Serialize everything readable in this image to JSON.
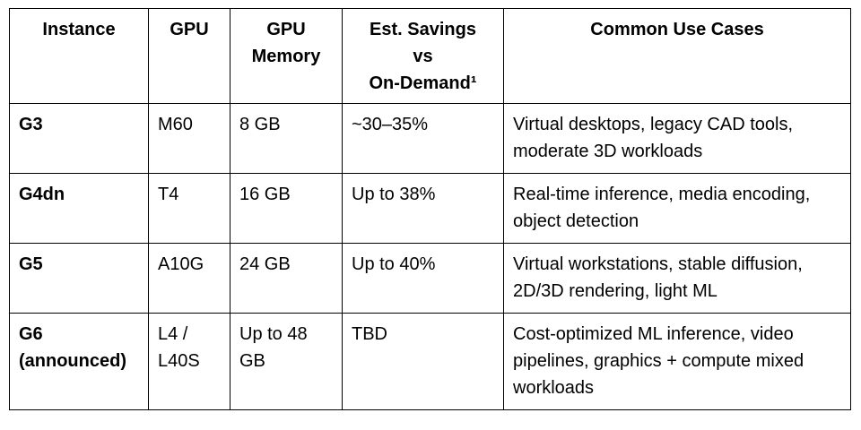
{
  "table": {
    "headers": {
      "instance": "Instance",
      "gpu": "GPU",
      "memory": [
        "GPU",
        "Memory"
      ],
      "savings": [
        "Est. Savings",
        "vs",
        "On-Demand¹"
      ],
      "use_cases": "Common Use Cases"
    },
    "rows": [
      {
        "instance": [
          "G3"
        ],
        "gpu": [
          "M60"
        ],
        "memory": [
          "8 GB"
        ],
        "savings": "~30–35%",
        "use_cases": [
          "Virtual desktops, legacy CAD tools,",
          "moderate 3D workloads"
        ]
      },
      {
        "instance": [
          "G4dn"
        ],
        "gpu": [
          "T4"
        ],
        "memory": [
          "16 GB"
        ],
        "savings": "Up to 38%",
        "use_cases": [
          "Real-time inference, media encoding,",
          "object detection"
        ]
      },
      {
        "instance": [
          "G5"
        ],
        "gpu": [
          "A10G"
        ],
        "memory": [
          "24 GB"
        ],
        "savings": "Up to 40%",
        "use_cases": [
          "Virtual workstations, stable diffusion,",
          "2D/3D rendering, light ML"
        ]
      },
      {
        "instance": [
          "G6",
          "(announced)"
        ],
        "gpu": [
          "L4 /",
          "L40S"
        ],
        "memory": [
          "Up to 48",
          "GB"
        ],
        "savings": "TBD",
        "use_cases": [
          "Cost-optimized ML inference, video",
          "pipelines, graphics + compute mixed",
          "workloads"
        ]
      }
    ]
  }
}
